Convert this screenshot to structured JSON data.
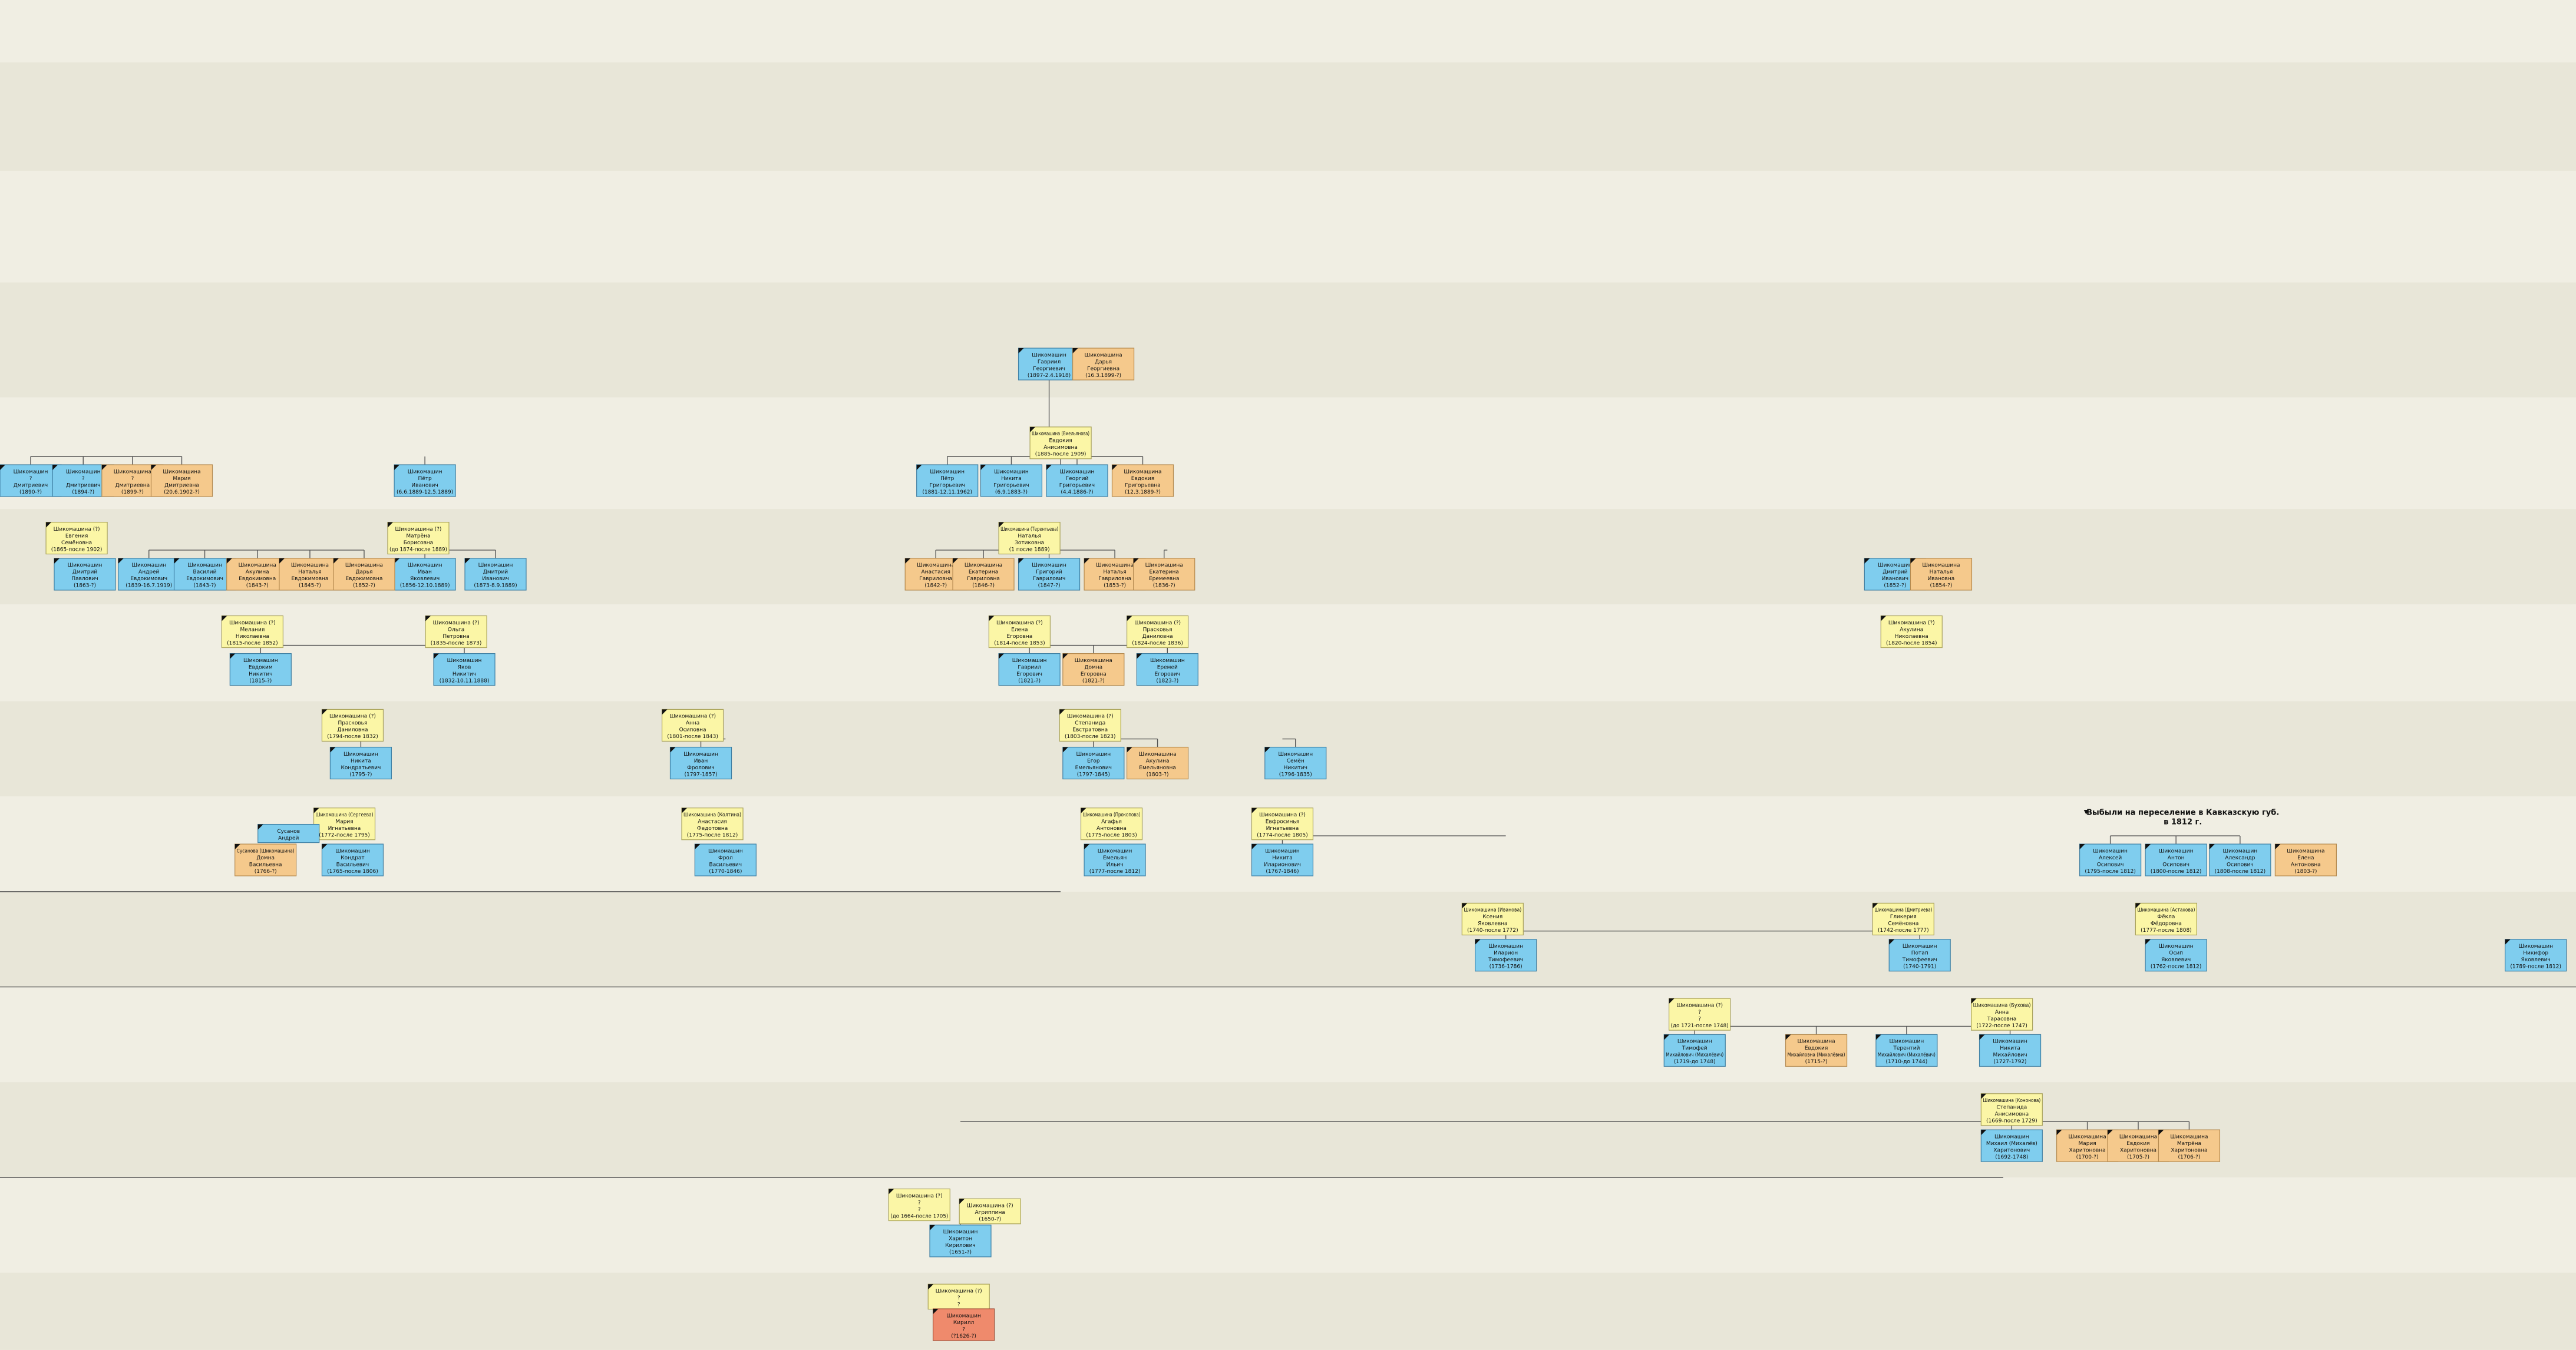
{
  "nodes": [
    {
      "lines": [
        "Шикомашин",
        "Гавриил",
        "Георгиевич",
        "(1897-2.4.1918)"
      ]
    },
    {
      "lines": [
        "Шикомашина",
        "Дарья",
        "Георгиевна",
        "(16.3.1899-?)"
      ]
    },
    {
      "lines": [
        "Шикомашина (Емельянова)",
        "Евдокия",
        "Анисимовна",
        "(1885-после 1909)"
      ]
    },
    {
      "lines": [
        "Шикомашин",
        "Пётр",
        "Григорьевич",
        "(1881-12.11.1962)"
      ]
    },
    {
      "lines": [
        "Шикомашин",
        "Никита",
        "Григорьевич",
        "(6.9.1883-?)"
      ]
    },
    {
      "lines": [
        "Шикомашин",
        "Георгий",
        "Григорьевич",
        "(4.4.1886-?)"
      ]
    },
    {
      "lines": [
        "Шикомашина",
        "Евдокия",
        "Григорьевна",
        "(12.3.1889-?)"
      ]
    },
    {
      "lines": [
        "Шикомашина (Терентьева)",
        "Наталья",
        "Зотиковна",
        "(1 после 1889)"
      ]
    },
    {
      "lines": [
        "Шикомашин",
        "Григорий",
        "Гаврилович",
        "(1847-?)"
      ]
    },
    {
      "lines": [
        "Шикомашина",
        "Анастасия",
        "Гавриловна",
        "(1842-?)"
      ]
    },
    {
      "lines": [
        "Шикомашина",
        "Екатерина",
        "Гавриловна",
        "(1846-?)"
      ]
    },
    {
      "lines": [
        "Шикомашина",
        "Наталья",
        "Гавриловна",
        "(1853-?)"
      ]
    },
    {
      "lines": [
        "Шикомашина",
        "Екатерина",
        "Еремеевна",
        "(1836-?)"
      ]
    },
    {
      "lines": [
        "Шикомашина (?)",
        "Елена",
        "Егоровна",
        "(1814-после 1853)"
      ]
    },
    {
      "lines": [
        "Шикомашин",
        "Гавриил",
        "Егорович",
        "(1821-?)"
      ]
    },
    {
      "lines": [
        "Шикомашина (?)",
        "Прасковья",
        "Даниловна",
        "(1824-после 1836)"
      ]
    },
    {
      "lines": [
        "Шикомашин",
        "Еремей",
        "Егорович",
        "(1823-?)"
      ]
    },
    {
      "lines": [
        "Шикомашина",
        "Домна",
        "Егоровна",
        "(1821-?)"
      ]
    },
    {
      "lines": [
        "Шикомашина (?)",
        "Степанида",
        "Евстратовна",
        "(1803-после 1823)"
      ]
    },
    {
      "lines": [
        "Шикомашин",
        "Егор",
        "Емельянович",
        "(1797-1845)"
      ]
    },
    {
      "lines": [
        "Шикомашина",
        "Акулина",
        "Емельяновна",
        "(1803-?)"
      ]
    },
    {
      "lines": [
        "Шикомашина (Прокопова)",
        "Агафья",
        "Антоновна",
        "(1775-после 1803)"
      ]
    },
    {
      "lines": [
        "Шикомашин",
        "Емельян",
        "Ильич",
        "(1777-после 1812)"
      ]
    },
    {
      "lines": [
        "Шикомашин",
        "Пётр",
        "Иванович",
        "(6.6.1889-12.5.1889)"
      ]
    },
    {
      "lines": [
        "Шикомашина (?)",
        "Матрёна",
        "Борисовна",
        "(до 1874-после 1889)"
      ]
    },
    {
      "lines": [
        "Шикомашин",
        "Иван",
        "Яковлевич",
        "(1856-12.10.1889)"
      ]
    },
    {
      "lines": [
        "Шикомашин",
        "Дмитрий",
        "Иванович",
        "(1873-8.9.1889)"
      ]
    },
    {
      "lines": [
        "Шикомашина (?)",
        "Ольга",
        "Петровна",
        "(1835-после 1873)"
      ]
    },
    {
      "lines": [
        "Шикомашин",
        "Яков",
        "Никитич",
        "(1832-10.11.1888)"
      ]
    },
    {
      "lines": [
        "Шикомашина (?)",
        "Прасковья",
        "Даниловна",
        "(1794-после 1832)"
      ]
    },
    {
      "lines": [
        "Шикомашин",
        "Никита",
        "Кондратьевич",
        "(1795-?)"
      ]
    },
    {
      "lines": [
        "Шикомашина (Сергеева)",
        "Мария",
        "Игнатьевна",
        "(1772-после 1795)"
      ]
    },
    {
      "lines": [
        "Шикомашин",
        "Кондрат",
        "Васильевич",
        "(1765-после 1806)"
      ]
    },
    {
      "lines": [
        "Сусанова (Шикомашина)",
        "Домна",
        "Васильевна",
        "(1766-?)"
      ]
    },
    {
      "lines": [
        "Сусанов",
        "Андрей"
      ]
    },
    {
      "lines": [
        "Шикомашина (?)",
        "Мелания",
        "Николаевна",
        "(1815-после 1852)"
      ]
    },
    {
      "lines": [
        "Шикомашин",
        "Евдоким",
        "Никитич",
        "(1815-?)"
      ]
    },
    {
      "lines": [
        "Шикомашина (?)",
        "Евгения",
        "Семёновна",
        "(1865-после 1902)"
      ]
    },
    {
      "lines": [
        "Шикомашин",
        "Дмитрий",
        "Павлович",
        "(1863-?)"
      ]
    },
    {
      "lines": [
        "Шикомашин",
        "Андрей",
        "Евдокимович",
        "(1839-16.7.1919)"
      ]
    },
    {
      "lines": [
        "Шикомашин",
        "Василий",
        "Евдокимович",
        "(1843-?)"
      ]
    },
    {
      "lines": [
        "Шикомашина",
        "Акулина",
        "Евдокимовна",
        "(1843-?)"
      ]
    },
    {
      "lines": [
        "Шикомашина",
        "Наталья",
        "Евдокимовна",
        "(1845-?)"
      ]
    },
    {
      "lines": [
        "Шикомашина",
        "Дарья",
        "Евдокимовна",
        "(1852-?)"
      ]
    },
    {
      "lines": [
        "Шикомашин",
        "?",
        "Дмитриевич",
        "(1890-?)"
      ]
    },
    {
      "lines": [
        "Шикомашин",
        "?",
        "Дмитриевич",
        "(1894-?)"
      ]
    },
    {
      "lines": [
        "Шикомашина",
        "?",
        "Дмитриевна",
        "(1899-?)"
      ]
    },
    {
      "lines": [
        "Шикомашина",
        "Мария",
        "Дмитриевна",
        "(20.6.1902-?)"
      ]
    },
    {
      "lines": [
        "Шикомашина (?)",
        "Анна",
        "Осиповна",
        "(1801-после 1843)"
      ]
    },
    {
      "lines": [
        "Шикомашин",
        "Иван",
        "Фролович",
        "(1797-1857)"
      ]
    },
    {
      "lines": [
        "Шикомашина (Колтина)",
        "Анастасия",
        "Федотовна",
        "(1775-после 1812)"
      ]
    },
    {
      "lines": [
        "Шикомашин",
        "Фрол",
        "Васильевич",
        "(1770-1846)"
      ]
    },
    {
      "lines": [
        "Шикомашин",
        "Семён",
        "Никитич",
        "(1796-1835)"
      ]
    },
    {
      "lines": [
        "Шикомашина (?)",
        "Евфросинья",
        "Игнатьевна",
        "(1774-после 1805)"
      ]
    },
    {
      "lines": [
        "Шикомашин",
        "Никита",
        "Иларионович",
        "(1767-1846)"
      ]
    },
    {
      "lines": [
        "Шикомашин",
        "Алексей",
        "Осипович",
        "(1795-после 1812)"
      ]
    },
    {
      "lines": [
        "Шикомашин",
        "Антон",
        "Осипович",
        "(1800-после 1812)"
      ]
    },
    {
      "lines": [
        "Шикомашин",
        "Александр",
        "Осипович",
        "(1808-после 1812)"
      ]
    },
    {
      "lines": [
        "Шикомашина (Астахова)",
        "Фёкла",
        "Фёдоровна",
        "(1777-после 1808)"
      ]
    },
    {
      "lines": [
        "Шикомашин",
        "Осип",
        "Яковлевич",
        "(1762-после 1812)"
      ]
    },
    {
      "lines": [
        "Шикомашина (Иванова)",
        "Ксения",
        "Яковлевна",
        "(1740-после 1772)"
      ]
    },
    {
      "lines": [
        "Шикомашин",
        "Иларион",
        "Тимофеевич",
        "(1736-1786)"
      ]
    },
    {
      "lines": [
        "Шикомашина (Дмитриева)",
        "Гликерия",
        "Семёновна",
        "(1742-после 1777)"
      ]
    },
    {
      "lines": [
        "Шикомашин",
        "Потап",
        "Тимофеевич",
        "(1740-1791)"
      ]
    },
    {
      "lines": [
        "Шикомашина (?)",
        "?",
        "?",
        "(до 1721-после 1748)"
      ]
    },
    {
      "lines": [
        "Шикомашин",
        "Тимофей",
        "Михайлович (Михалёвич)",
        "(1719-до 1748)"
      ]
    },
    {
      "lines": [
        "Шикомашина (Бухова)",
        "Анна",
        "Тарасовна",
        "(1722-после 1747)"
      ]
    },
    {
      "lines": [
        "Шикомашин",
        "Никита",
        "Михайлович",
        "(1727-1792)"
      ]
    },
    {
      "lines": [
        "Шикомашина",
        "Евдокия",
        "Михайловна (Михалёвна)",
        "(1715-?)"
      ]
    },
    {
      "lines": [
        "Шикомашин",
        "Терентий",
        "Михайлович (Михалёвич)",
        "(1710-до 1744)"
      ]
    },
    {
      "lines": [
        "Шикомашина (Кононова)",
        "Степанида",
        "Анисимовна",
        "(1669-после 1729)"
      ]
    },
    {
      "lines": [
        "Шикомашин",
        "Михаил (Михалёв)",
        "Харитонович",
        "(1692-1748)"
      ]
    },
    {
      "lines": [
        "Шикомашина",
        "Мария",
        "Харитоновна",
        "(1700-?)"
      ]
    },
    {
      "lines": [
        "Шикомашина",
        "Евдокия",
        "Харитоновна",
        "(1705-?)"
      ]
    },
    {
      "lines": [
        "Шикомашина",
        "Матрёна",
        "Харитоновна",
        "(1706-?)"
      ]
    },
    {
      "lines": [
        "Шикомашина (?)",
        "?",
        "?",
        "(до 1664-после 1705)"
      ]
    },
    {
      "lines": [
        "Шикомашина (?)",
        "Агриппина",
        "(1650-?)"
      ]
    },
    {
      "lines": [
        "Шикомашин",
        "Харитон",
        "Кирилович",
        "(1651-?)"
      ]
    },
    {
      "lines": [
        "Шикомашина (?)",
        "?",
        "?"
      ]
    },
    {
      "lines": [
        "Шикомашин",
        "Кирилл",
        "?",
        "(?1626-?)"
      ]
    },
    {
      "lines": [
        "Шикомашин",
        "Дмитрий",
        "Иванович",
        "(1852-?)"
      ]
    },
    {
      "lines": [
        "Шикомашина",
        "Наталья",
        "Ивановна",
        "(1854-?)"
      ]
    },
    {
      "lines": [
        "Шикомашина (?)",
        "Акулина",
        "Николаевна",
        "(1820-после 1854)"
      ]
    },
    {
      "lines": [
        "Шикомашина",
        "Елена",
        "Антоновна",
        "(1803-?)"
      ]
    },
    {
      "lines": [
        "Шикомашин",
        "Никифор",
        "Яковлевич",
        "(1789-после 1812)"
      ]
    }
  ],
  "annotation": {
    "lines": [
      "Выбыли на переселение в Кавказскую губ.",
      "в 1812 г."
    ]
  }
}
